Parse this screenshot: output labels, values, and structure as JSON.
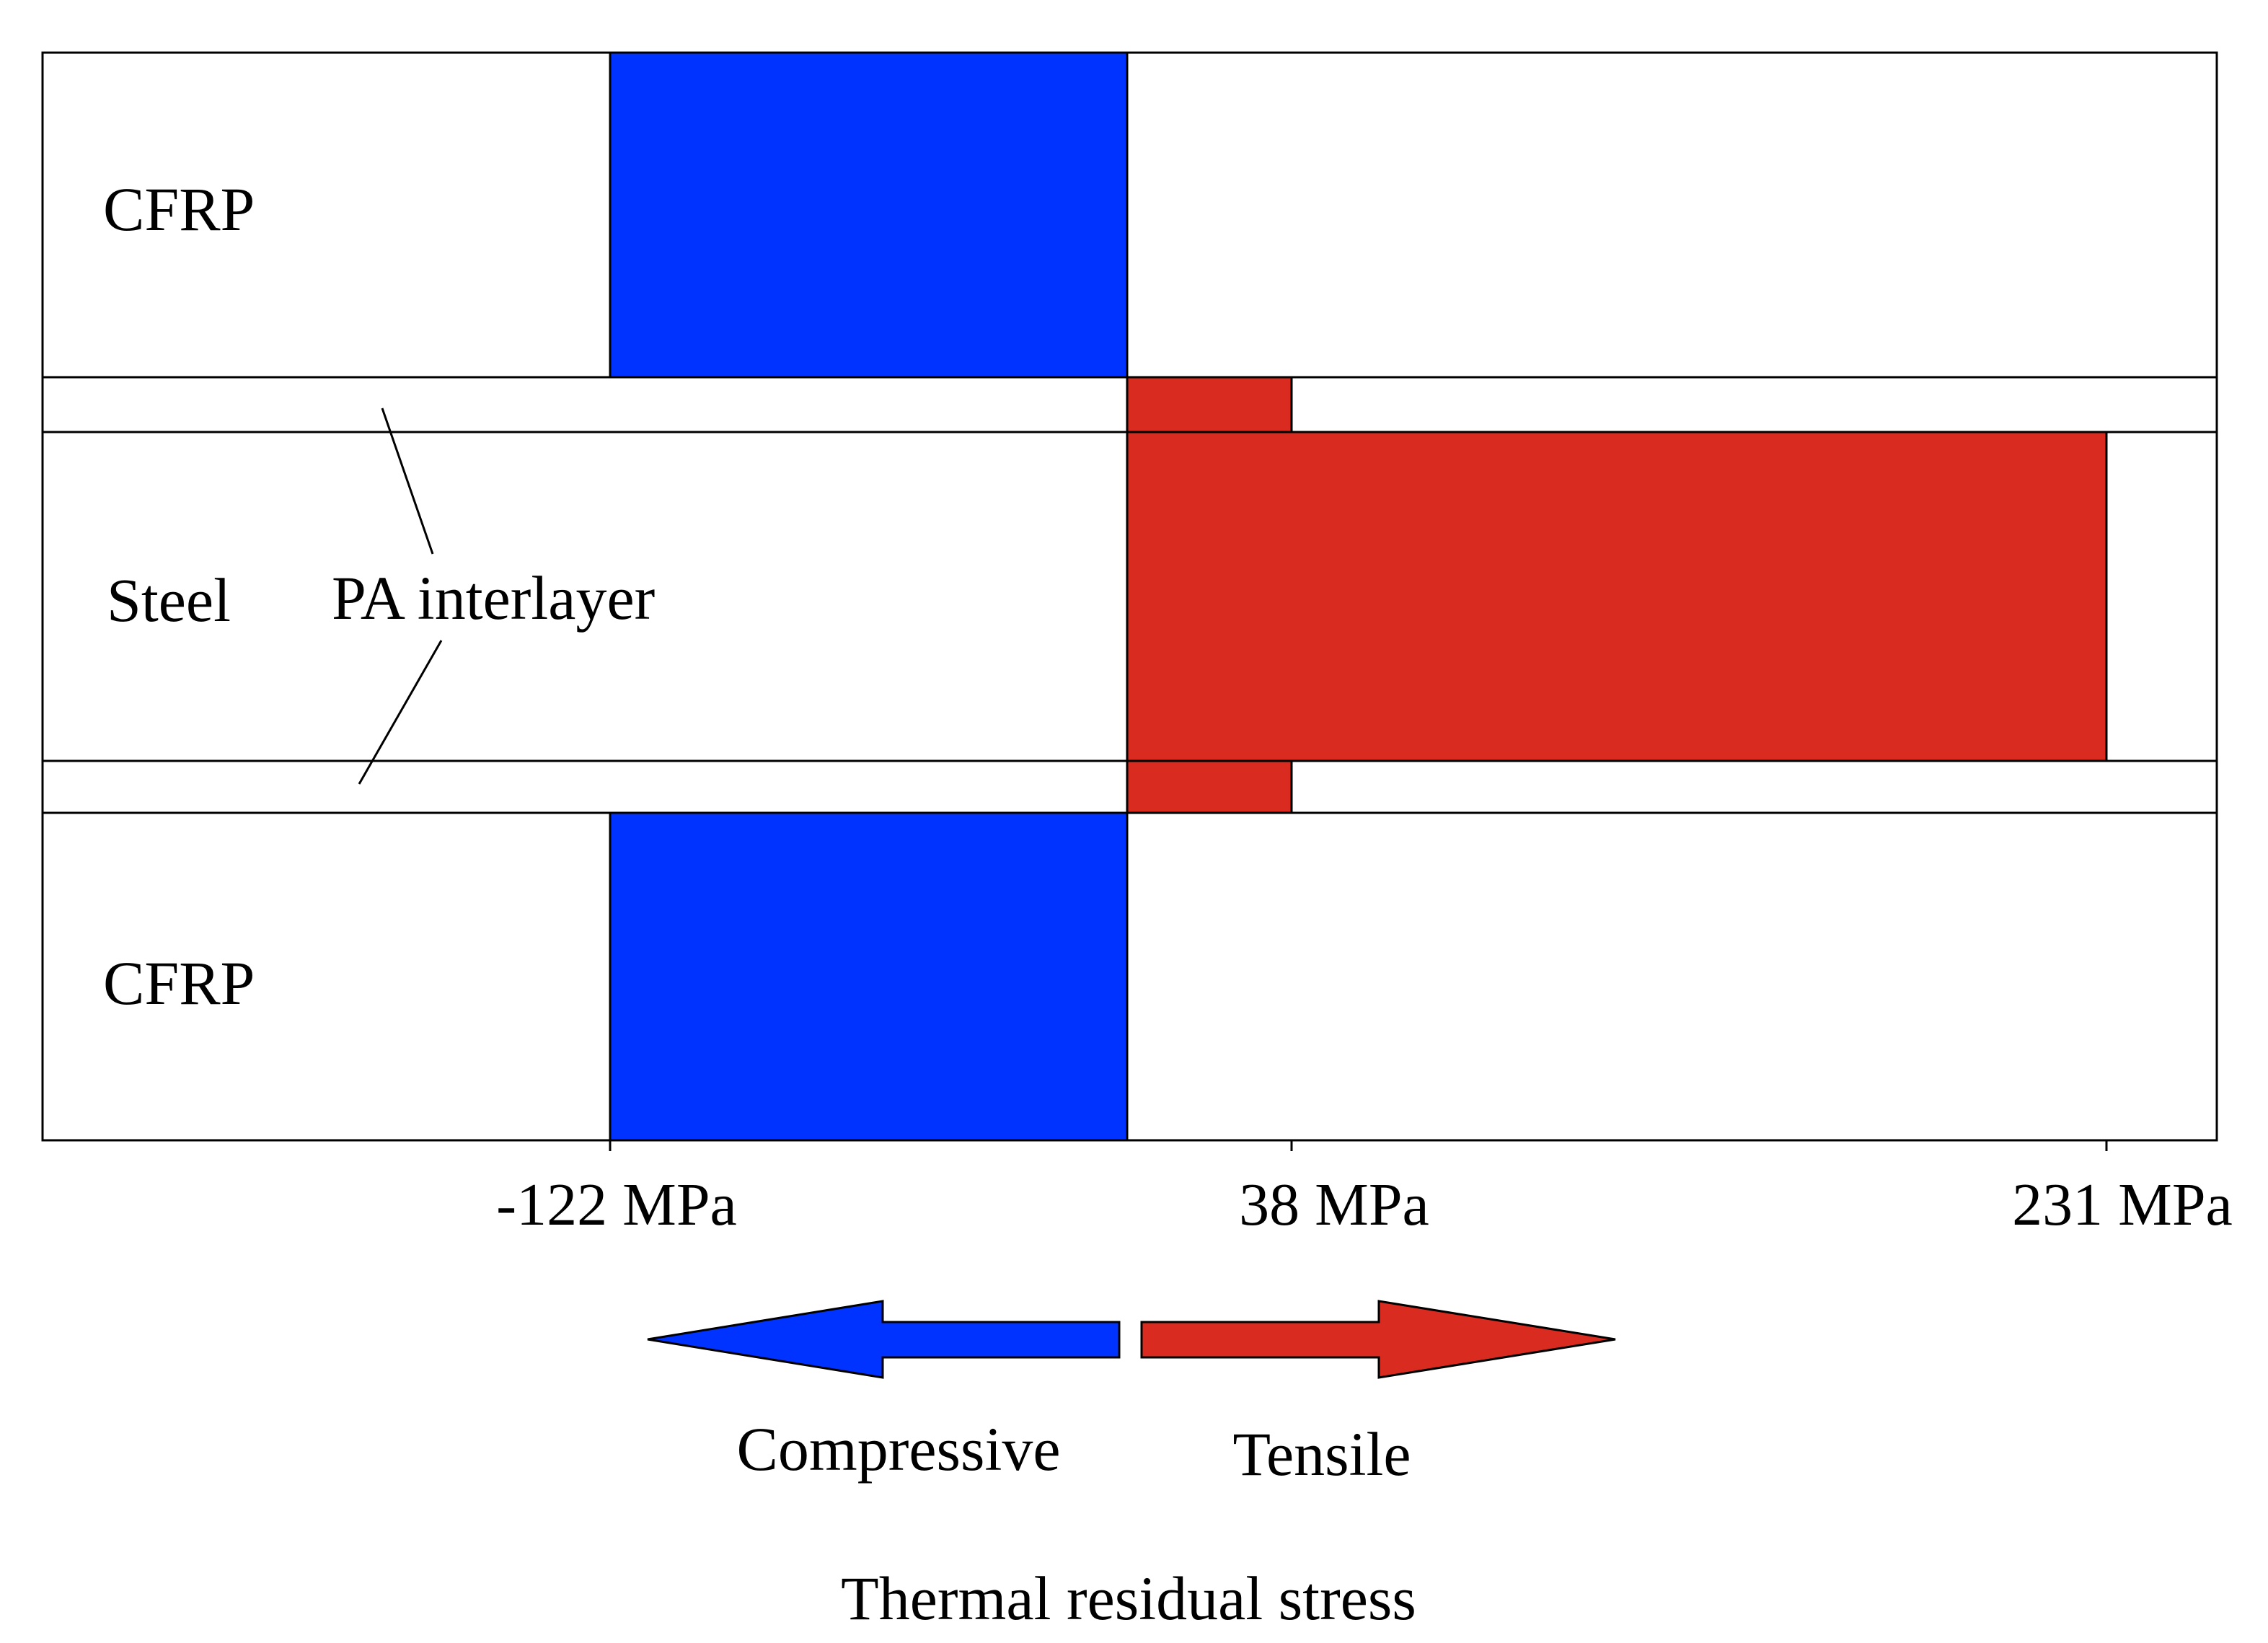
{
  "colors": {
    "compressive": "#0033ff",
    "tensile": "#d92b1f",
    "outline": "#000000",
    "background": "#ffffff"
  },
  "layers": {
    "cfrp_top": "CFRP",
    "steel": "Steel",
    "interlayer": "PA interlayer",
    "cfrp_bottom": "CFRP"
  },
  "axis": {
    "tick_1": "-122 MPa",
    "tick_2": "38 MPa",
    "tick_3": "231 MPa"
  },
  "stress_values_mpa": {
    "cfrp": -122,
    "pa_interlayer": 38,
    "steel": 231
  },
  "legend": {
    "compressive_label": "Compressive",
    "tensile_label": "Tensile",
    "title": "Thermal residual stress"
  }
}
